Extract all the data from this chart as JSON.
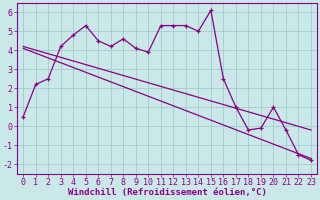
{
  "xlabel": "Windchill (Refroidissement éolien,°C)",
  "bg_color": "#cbe8e8",
  "line_color": "#880088",
  "xlim": [
    -0.5,
    23.5
  ],
  "ylim": [
    -2.5,
    6.5
  ],
  "xticks": [
    0,
    1,
    2,
    3,
    4,
    5,
    6,
    7,
    8,
    9,
    10,
    11,
    12,
    13,
    14,
    15,
    16,
    17,
    18,
    19,
    20,
    21,
    22,
    23
  ],
  "yticks": [
    -2,
    -1,
    0,
    1,
    2,
    3,
    4,
    5,
    6
  ],
  "data_x": [
    0,
    1,
    2,
    3,
    4,
    5,
    6,
    7,
    8,
    9,
    10,
    11,
    12,
    13,
    14,
    15,
    16,
    17,
    18,
    19,
    20,
    21,
    22,
    23
  ],
  "data_y": [
    0.5,
    2.2,
    2.5,
    4.2,
    4.8,
    5.3,
    4.5,
    4.2,
    4.6,
    4.1,
    3.9,
    5.3,
    5.3,
    5.3,
    5.0,
    6.1,
    2.5,
    1.0,
    -0.2,
    -0.1,
    1.0,
    -0.2,
    -1.5,
    -1.8
  ],
  "trend1_x": [
    0,
    23
  ],
  "trend1_y": [
    4.2,
    -0.2
  ],
  "trend2_x": [
    0,
    23
  ],
  "trend2_y": [
    4.1,
    -1.7
  ],
  "grid_color": "#a0cccc",
  "tick_fontsize": 6,
  "xlabel_fontsize": 6.5
}
